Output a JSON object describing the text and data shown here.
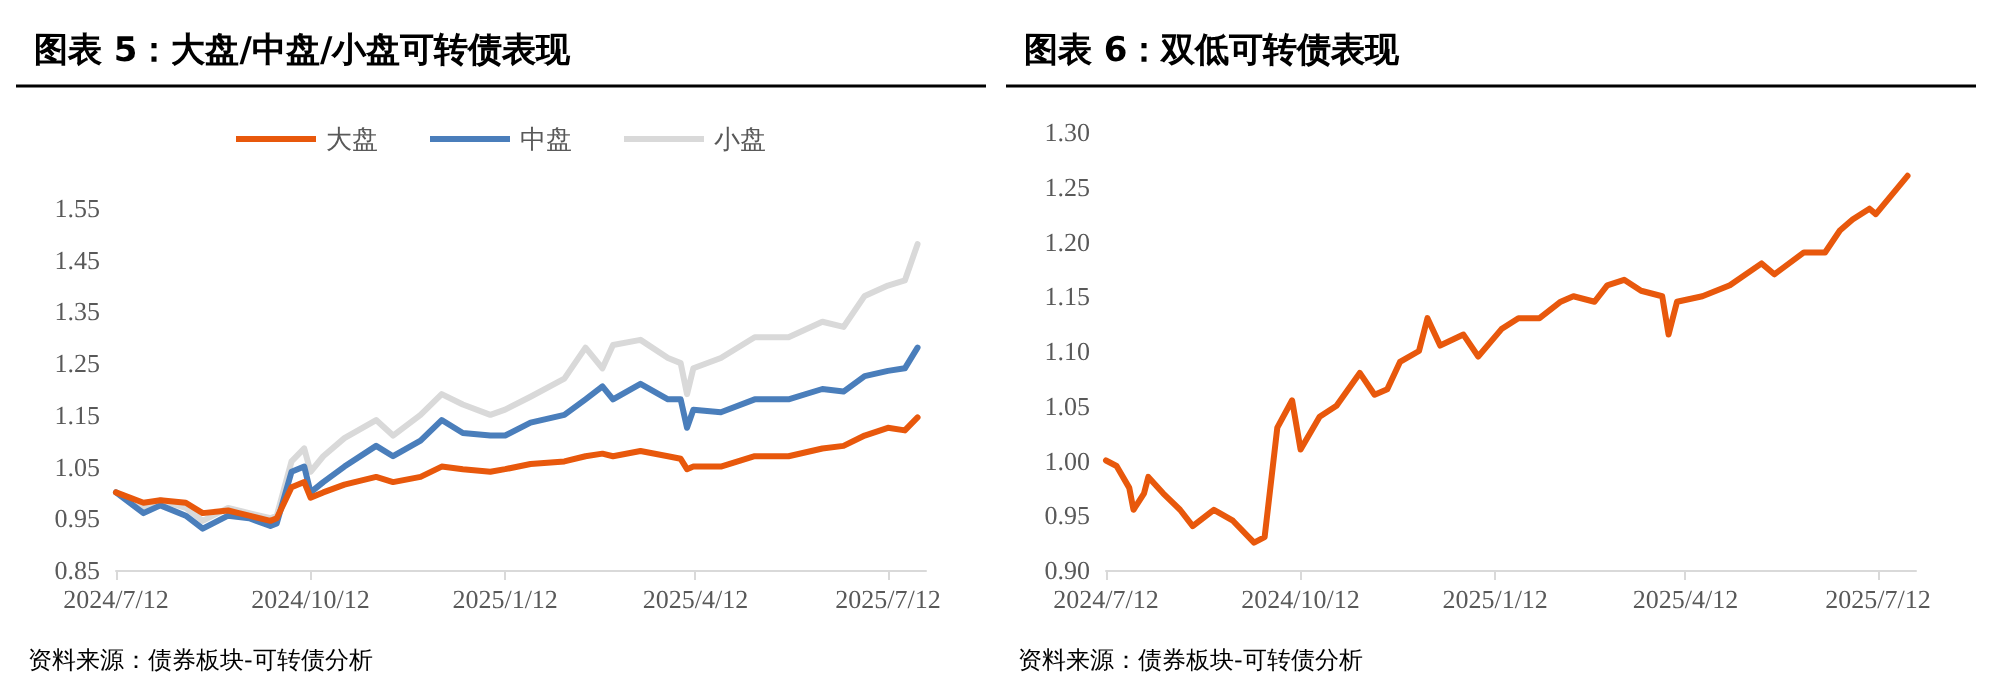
{
  "chart_data": [
    {
      "type": "line",
      "title": "图表 5：大盘/中盘/小盘可转债表现",
      "annotations": [
        "资料来源：债券板块-可转债分析"
      ],
      "legend": "top",
      "grid": false,
      "marker": "none",
      "line_style": "solid",
      "x": [
        "2024-07-12",
        "2024-07-25",
        "2024-08-02",
        "2024-08-14",
        "2024-08-22",
        "2024-09-03",
        "2024-09-13",
        "2024-09-23",
        "2024-09-26",
        "2024-10-03",
        "2024-10-09",
        "2024-10-12",
        "2024-10-18",
        "2024-10-28",
        "2024-11-12",
        "2024-11-20",
        "2024-12-03",
        "2024-12-13",
        "2024-12-23",
        "2025-01-05",
        "2025-01-12",
        "2025-01-24",
        "2025-02-09",
        "2025-02-19",
        "2025-02-27",
        "2025-03-04",
        "2025-03-17",
        "2025-03-30",
        "2025-04-05",
        "2025-04-08",
        "2025-04-11",
        "2025-04-24",
        "2025-05-10",
        "2025-05-26",
        "2025-06-11",
        "2025-06-21",
        "2025-07-01",
        "2025-07-12",
        "2025-07-20",
        "2025-07-26"
      ],
      "xlim": [
        "2024-07-12",
        "2025-07-30"
      ],
      "xticks": [
        {
          "value": "2024-07-12",
          "label": "2024/7/12"
        },
        {
          "value": "2024-10-12",
          "label": "2024/10/12"
        },
        {
          "value": "2025-01-12",
          "label": "2025/1/12"
        },
        {
          "value": "2025-04-12",
          "label": "2025/4/12"
        },
        {
          "value": "2025-07-12",
          "label": "2025/7/12"
        }
      ],
      "ylim": [
        0.85,
        1.55
      ],
      "yticks": [
        0.85,
        0.95,
        1.05,
        1.15,
        1.25,
        1.35,
        1.45,
        1.55
      ],
      "series": [
        {
          "name": "大盘",
          "color": "#e8580c",
          "values": [
            1.0,
            0.98,
            0.985,
            0.98,
            0.96,
            0.965,
            0.955,
            0.945,
            0.95,
            1.01,
            1.02,
            0.99,
            1.0,
            1.015,
            1.03,
            1.02,
            1.03,
            1.05,
            1.045,
            1.04,
            1.045,
            1.055,
            1.06,
            1.07,
            1.075,
            1.07,
            1.08,
            1.07,
            1.065,
            1.045,
            1.05,
            1.05,
            1.07,
            1.07,
            1.085,
            1.09,
            1.11,
            1.125,
            1.12,
            1.145
          ]
        },
        {
          "name": "中盘",
          "color": "#4a7ebb",
          "values": [
            1.0,
            0.96,
            0.975,
            0.955,
            0.93,
            0.955,
            0.95,
            0.935,
            0.94,
            1.04,
            1.05,
            1.0,
            1.02,
            1.05,
            1.09,
            1.07,
            1.1,
            1.14,
            1.115,
            1.11,
            1.11,
            1.135,
            1.15,
            1.18,
            1.205,
            1.18,
            1.21,
            1.18,
            1.18,
            1.125,
            1.16,
            1.155,
            1.18,
            1.18,
            1.2,
            1.195,
            1.225,
            1.235,
            1.24,
            1.28
          ]
        },
        {
          "name": "小盘",
          "color": "#d9d9d9",
          "values": [
            1.0,
            0.97,
            0.985,
            0.97,
            0.945,
            0.97,
            0.96,
            0.95,
            0.955,
            1.06,
            1.085,
            1.04,
            1.07,
            1.105,
            1.14,
            1.11,
            1.15,
            1.19,
            1.17,
            1.15,
            1.16,
            1.185,
            1.22,
            1.28,
            1.24,
            1.285,
            1.295,
            1.26,
            1.25,
            1.19,
            1.24,
            1.26,
            1.3,
            1.3,
            1.33,
            1.32,
            1.38,
            1.4,
            1.41,
            1.48
          ]
        }
      ]
    },
    {
      "type": "line",
      "title": "图表 6：双低可转债表现",
      "annotations": [
        "资料来源：债券板块-可转债分析"
      ],
      "grid": false,
      "marker": "none",
      "line_style": "solid",
      "x": [
        "2024-07-12",
        "2024-07-17",
        "2024-07-23",
        "2024-07-25",
        "2024-07-30",
        "2024-08-01",
        "2024-08-08",
        "2024-08-16",
        "2024-08-22",
        "2024-09-01",
        "2024-09-10",
        "2024-09-20",
        "2024-09-25",
        "2024-10-01",
        "2024-10-08",
        "2024-10-12",
        "2024-10-21",
        "2024-10-29",
        "2024-11-09",
        "2024-11-16",
        "2024-11-22",
        "2024-11-28",
        "2024-12-07",
        "2024-12-11",
        "2024-12-17",
        "2024-12-28",
        "2025-01-04",
        "2025-01-15",
        "2025-01-23",
        "2025-02-02",
        "2025-02-12",
        "2025-02-18",
        "2025-02-28",
        "2025-03-06",
        "2025-03-14",
        "2025-03-22",
        "2025-04-01",
        "2025-04-04",
        "2025-04-08",
        "2025-04-20",
        "2025-05-03",
        "2025-05-18",
        "2025-05-24",
        "2025-06-07",
        "2025-06-17",
        "2025-06-24",
        "2025-06-30",
        "2025-07-08",
        "2025-07-11",
        "2025-07-26"
      ],
      "xlim": [
        "2024-07-12",
        "2025-07-30"
      ],
      "xticks": [
        {
          "value": "2024-07-12",
          "label": "2024/7/12"
        },
        {
          "value": "2024-10-12",
          "label": "2024/10/12"
        },
        {
          "value": "2025-01-12",
          "label": "2025/1/12"
        },
        {
          "value": "2025-04-12",
          "label": "2025/4/12"
        },
        {
          "value": "2025-07-12",
          "label": "2025/7/12"
        }
      ],
      "ylim": [
        0.9,
        1.3
      ],
      "yticks": [
        {
          "value": 0.9,
          "label": "0.90"
        },
        0.95,
        {
          "value": 1.0,
          "label": "1.00"
        },
        1.05,
        {
          "value": 1.1,
          "label": "1.10"
        },
        1.15,
        {
          "value": 1.2,
          "label": "1.20"
        },
        1.25,
        {
          "value": 1.3,
          "label": "1.30"
        }
      ],
      "series": [
        {
          "color": "#e8580c",
          "values": [
            1.0,
            0.995,
            0.975,
            0.955,
            0.97,
            0.985,
            0.97,
            0.955,
            0.94,
            0.955,
            0.945,
            0.925,
            0.93,
            1.03,
            1.055,
            1.01,
            1.04,
            1.05,
            1.08,
            1.06,
            1.065,
            1.09,
            1.1,
            1.13,
            1.105,
            1.115,
            1.095,
            1.12,
            1.13,
            1.13,
            1.145,
            1.15,
            1.145,
            1.16,
            1.165,
            1.155,
            1.15,
            1.115,
            1.145,
            1.15,
            1.16,
            1.18,
            1.17,
            1.19,
            1.19,
            1.21,
            1.22,
            1.23,
            1.225,
            1.26
          ]
        }
      ]
    }
  ]
}
